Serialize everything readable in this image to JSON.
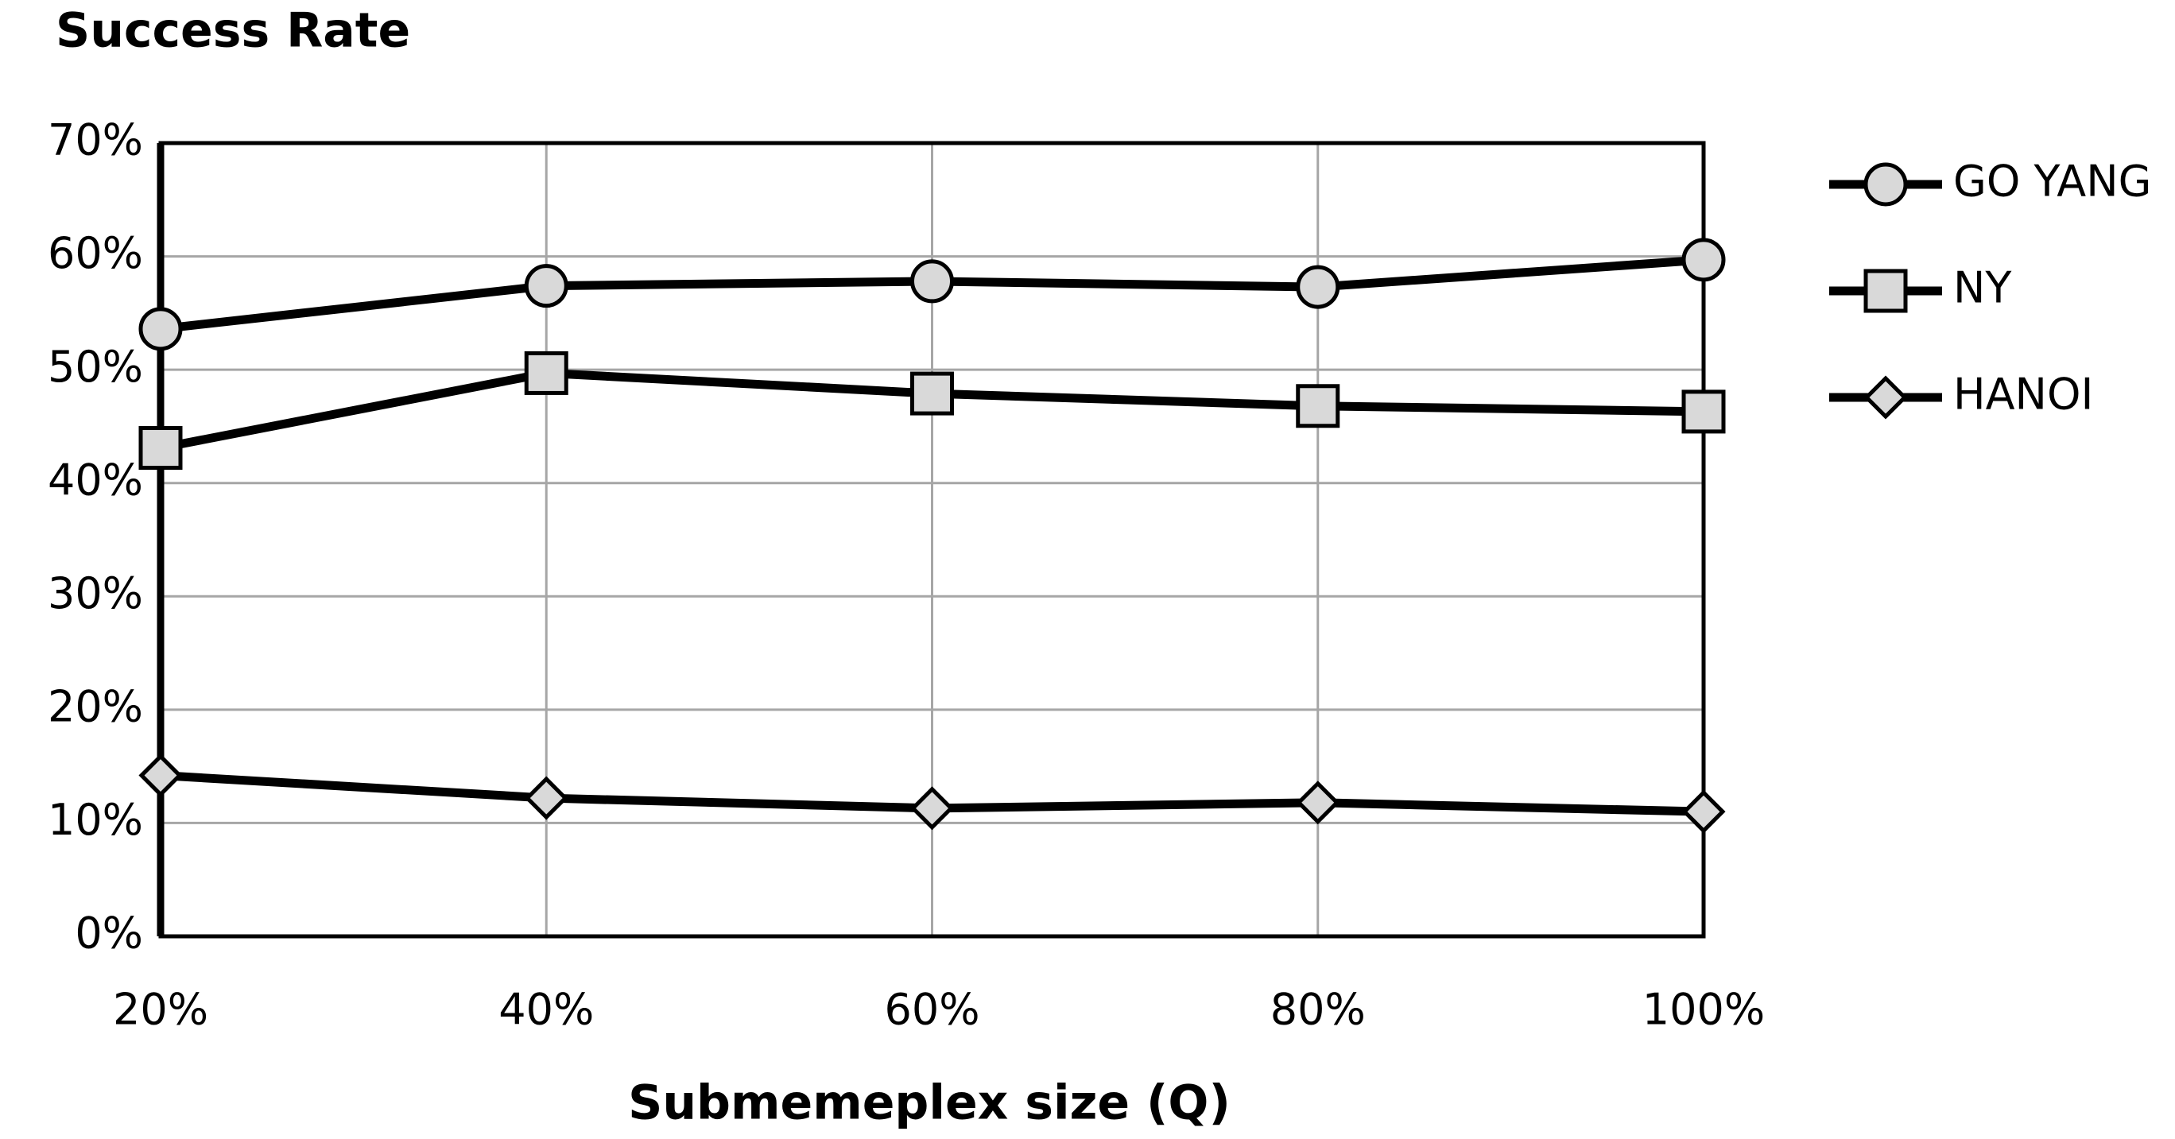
{
  "chart_data": {
    "type": "line",
    "title": "Success Rate",
    "x_label": "Submemeplex size (Q)",
    "categories": [
      "20%",
      "40%",
      "60%",
      "80%",
      "100%"
    ],
    "series": [
      {
        "name": "GO YANG",
        "color": "#000000",
        "marker": "circle",
        "marker_color": "#d9d9d9",
        "values": [
          53.6,
          57.4,
          57.8,
          57.3,
          59.7
        ]
      },
      {
        "name": "NY",
        "color": "#000000",
        "marker": "square",
        "marker_color": "#d9d9d9",
        "values": [
          43.1,
          49.7,
          47.9,
          46.8,
          46.3
        ]
      },
      {
        "name": "HANOI",
        "color": "#000000",
        "marker": "diamond",
        "marker_color": "#d9d9d9",
        "values": [
          14.2,
          12.2,
          11.3,
          11.8,
          11.0
        ]
      }
    ],
    "ylim": [
      0,
      70
    ],
    "yticks": [
      {
        "value": 0,
        "label": "0%"
      },
      {
        "value": 10,
        "label": "10%"
      },
      {
        "value": 20,
        "label": "20%"
      },
      {
        "value": 30,
        "label": "30%"
      },
      {
        "value": 40,
        "label": "40%"
      },
      {
        "value": 50,
        "label": "50%"
      },
      {
        "value": 60,
        "label": "60%"
      },
      {
        "value": 70,
        "label": "70%"
      }
    ],
    "grid": true,
    "legend": "right"
  }
}
